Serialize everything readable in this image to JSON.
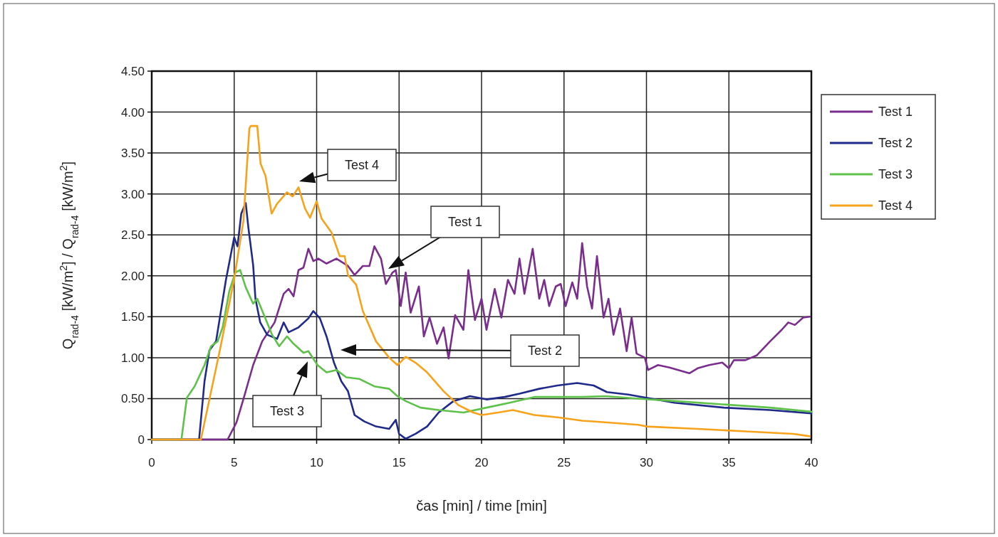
{
  "chart_data": {
    "type": "line",
    "xlabel": "čas [min] / time [min]",
    "ylabel": "Q$_{rad-4}$ [kW/m$^{2}$] / Q$_{rad-4}$ [kW/m$^{2}$]",
    "xlim": [
      0,
      40
    ],
    "xticks": [
      0,
      5,
      10,
      15,
      20,
      25,
      30,
      35,
      40
    ],
    "ylim": [
      0,
      4.5
    ],
    "yticks": [
      0,
      {
        "value": 0.5,
        "label": "0.50"
      },
      {
        "value": 1,
        "label": "1.00"
      },
      {
        "value": 1.5,
        "label": "1.50"
      },
      {
        "value": 2,
        "label": "2.00"
      },
      {
        "value": 2.5,
        "label": "2.50"
      },
      {
        "value": 3,
        "label": "3.00"
      },
      {
        "value": 3.5,
        "label": "3.50"
      },
      {
        "value": 4,
        "label": "4.00"
      },
      {
        "value": 4.5,
        "label": "4.50"
      }
    ],
    "grid": true,
    "legend": "right",
    "marker": "none",
    "line_style": "solid",
    "series": [
      {
        "name": "Test 1",
        "color": "#7b2d8e",
        "x": [
          0,
          4.6,
          5.14,
          5.57,
          6.15,
          6.7,
          7.45,
          8.0,
          8.3,
          8.6,
          8.9,
          9.2,
          9.5,
          9.8,
          10.1,
          10.6,
          11.2,
          11.9,
          12.3,
          12.8,
          13.2,
          13.5,
          13.9,
          14.2,
          14.6,
          14.8,
          15.1,
          15.4,
          15.7,
          16.2,
          16.5,
          16.85,
          17.3,
          17.7,
          18.0,
          18.4,
          18.9,
          19.2,
          19.6,
          20.0,
          20.3,
          20.8,
          21.2,
          21.6,
          22.0,
          22.3,
          22.6,
          23.1,
          23.5,
          23.8,
          24.1,
          24.5,
          24.8,
          25.1,
          25.5,
          25.8,
          26.1,
          26.4,
          26.7,
          27.0,
          27.4,
          27.7,
          28.0,
          28.4,
          28.8,
          29.1,
          29.4,
          29.9,
          30.1,
          30.7,
          31.4,
          32.6,
          33.1,
          33.8,
          34.6,
          35.0,
          35.3,
          36.0,
          36.7,
          37.5,
          38.2,
          38.6,
          39.0,
          39.5,
          39.9
        ],
        "values": [
          0,
          0,
          0.21,
          0.5,
          0.91,
          1.2,
          1.43,
          1.78,
          1.84,
          1.75,
          2.07,
          2.1,
          2.33,
          2.18,
          2.21,
          2.15,
          2.21,
          2.12,
          2.01,
          2.12,
          2.12,
          2.36,
          2.21,
          1.9,
          2.04,
          2.07,
          1.63,
          2.04,
          1.55,
          1.87,
          1.26,
          1.49,
          1.17,
          1.37,
          0.99,
          1.52,
          1.34,
          2.07,
          1.46,
          1.72,
          1.34,
          1.84,
          1.49,
          1.95,
          1.78,
          2.21,
          1.78,
          2.33,
          1.72,
          1.95,
          1.63,
          1.87,
          1.9,
          1.63,
          1.92,
          1.72,
          2.4,
          1.87,
          1.6,
          2.24,
          1.49,
          1.72,
          1.28,
          1.6,
          1.08,
          1.49,
          1.05,
          1.0,
          0.85,
          0.91,
          0.88,
          0.81,
          0.87,
          0.91,
          0.94,
          0.87,
          0.97,
          0.97,
          1.03,
          1.2,
          1.34,
          1.43,
          1.4,
          1.49,
          1.5
        ]
      },
      {
        "name": "Test 2",
        "color": "#1f2a8a",
        "x": [
          0,
          2.87,
          3.2,
          3.5,
          3.9,
          4.5,
          5.0,
          5.2,
          5.43,
          5.7,
          5.86,
          6.15,
          6.29,
          6.58,
          7.0,
          7.6,
          8.0,
          8.3,
          8.9,
          9.5,
          9.8,
          10.2,
          10.6,
          11.05,
          11.5,
          11.9,
          12.3,
          12.9,
          13.6,
          14.4,
          14.8,
          15.0,
          15.4,
          16.0,
          16.7,
          17.4,
          18.3,
          19.3,
          20.3,
          21.4,
          22.3,
          23.5,
          24.6,
          25.8,
          26.8,
          27.6,
          28.9,
          31.7,
          34.7,
          37.5,
          40
        ],
        "values": [
          0,
          0,
          0.71,
          1.09,
          1.2,
          1.95,
          2.47,
          2.36,
          2.76,
          2.89,
          2.59,
          2.13,
          1.72,
          1.43,
          1.28,
          1.23,
          1.43,
          1.31,
          1.37,
          1.48,
          1.57,
          1.48,
          1.26,
          0.94,
          0.71,
          0.59,
          0.3,
          0.22,
          0.16,
          0.13,
          0.24,
          0.07,
          0.01,
          0.07,
          0.16,
          0.33,
          0.47,
          0.53,
          0.49,
          0.52,
          0.56,
          0.62,
          0.66,
          0.69,
          0.66,
          0.58,
          0.55,
          0.45,
          0.39,
          0.36,
          0.32
        ]
      },
      {
        "name": "Test 3",
        "color": "#5ec14a",
        "x": [
          0,
          1.8,
          2.13,
          2.6,
          3.2,
          3.6,
          4.0,
          4.3,
          4.7,
          5.07,
          5.36,
          5.7,
          6.15,
          6.4,
          6.87,
          7.3,
          7.73,
          8.2,
          8.6,
          9.2,
          9.5,
          10.05,
          10.6,
          11.2,
          11.8,
          12.6,
          13.5,
          14.4,
          14.9,
          15.4,
          16.3,
          17.4,
          18.9,
          20.3,
          21.7,
          23.2,
          24.6,
          26.1,
          27.5,
          29.5,
          31.7,
          34.6,
          37.5,
          40
        ],
        "values": [
          0,
          0,
          0.51,
          0.65,
          0.91,
          1.14,
          1.2,
          1.37,
          1.81,
          2.04,
          2.07,
          1.86,
          1.66,
          1.72,
          1.49,
          1.28,
          1.14,
          1.26,
          1.17,
          1.06,
          1.08,
          0.91,
          0.82,
          0.85,
          0.76,
          0.74,
          0.65,
          0.62,
          0.53,
          0.47,
          0.39,
          0.36,
          0.33,
          0.39,
          0.45,
          0.52,
          0.52,
          0.52,
          0.53,
          0.5,
          0.47,
          0.43,
          0.39,
          0.34
        ]
      },
      {
        "name": "Test 4",
        "color": "#f7a21b",
        "x": [
          0,
          2.98,
          4.13,
          4.99,
          5.56,
          5.92,
          6.0,
          6.4,
          6.6,
          6.9,
          7.27,
          7.6,
          8.2,
          8.55,
          8.9,
          9.3,
          9.6,
          10.0,
          10.3,
          10.9,
          11.4,
          11.7,
          11.9,
          12.4,
          12.8,
          13.6,
          14.4,
          14.9,
          15.4,
          15.99,
          16.7,
          17.7,
          18.6,
          19.5,
          20.0,
          21.0,
          21.9,
          23.2,
          24.7,
          26.1,
          27.5,
          29.5,
          30.0,
          33.1,
          36.0,
          38.9,
          39.9
        ],
        "values": [
          0,
          0,
          1.09,
          1.95,
          2.67,
          3.8,
          3.83,
          3.83,
          3.37,
          3.22,
          2.76,
          2.88,
          3.02,
          2.97,
          3.08,
          2.82,
          2.71,
          2.91,
          2.7,
          2.53,
          2.24,
          2.24,
          2.01,
          1.89,
          1.57,
          1.2,
          1.0,
          0.91,
          1.01,
          0.94,
          0.82,
          0.59,
          0.42,
          0.33,
          0.3,
          0.33,
          0.36,
          0.3,
          0.27,
          0.23,
          0.21,
          0.18,
          0.16,
          0.13,
          0.1,
          0.07,
          0.04
        ]
      }
    ],
    "annotations": [
      "Test 1",
      "Test 2",
      "Test 3",
      "Test 4"
    ]
  }
}
